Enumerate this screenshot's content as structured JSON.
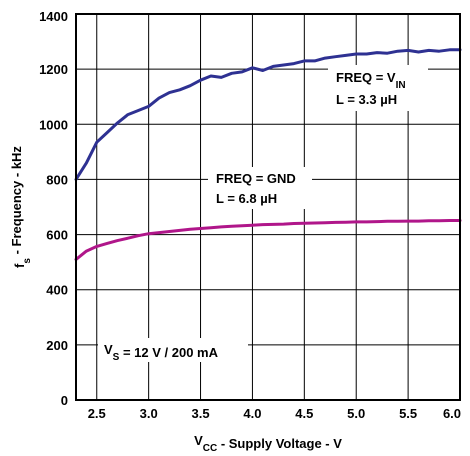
{
  "chart_data": {
    "type": "line",
    "title": "",
    "xlabel": {
      "main": "V",
      "sub": "CC",
      "rest": " - Supply Voltage - V"
    },
    "ylabel": {
      "main": "f",
      "sub": "s",
      "rest": " - Frequency - kHz"
    },
    "xlim": [
      2.3,
      6.0
    ],
    "ylim": [
      0,
      1400
    ],
    "xticks": [
      "2.5",
      "3.0",
      "3.5",
      "4.0",
      "4.5",
      "5.0",
      "5.5",
      "6.0"
    ],
    "yticks": [
      "0",
      "200",
      "400",
      "600",
      "800",
      "1000",
      "1200",
      "1400"
    ],
    "grid": true,
    "series": [
      {
        "color": "#2e3192",
        "x": [
          2.3,
          2.4,
          2.5,
          2.6,
          2.7,
          2.8,
          2.9,
          3.0,
          3.1,
          3.2,
          3.3,
          3.4,
          3.5,
          3.6,
          3.7,
          3.8,
          3.9,
          4.0,
          4.1,
          4.2,
          4.3,
          4.4,
          4.5,
          4.6,
          4.7,
          4.8,
          4.9,
          5.0,
          5.1,
          5.2,
          5.3,
          5.4,
          5.5,
          5.6,
          5.7,
          5.8,
          5.9,
          6.0
        ],
        "values": [
          800,
          860,
          935,
          970,
          1005,
          1035,
          1050,
          1065,
          1095,
          1115,
          1125,
          1140,
          1160,
          1175,
          1170,
          1185,
          1190,
          1205,
          1195,
          1210,
          1215,
          1220,
          1230,
          1230,
          1240,
          1245,
          1250,
          1255,
          1255,
          1260,
          1258,
          1265,
          1268,
          1262,
          1268,
          1265,
          1270,
          1270
        ]
      },
      {
        "color": "#b0168a",
        "x": [
          2.3,
          2.4,
          2.5,
          2.6,
          2.7,
          2.8,
          2.9,
          3.0,
          3.1,
          3.2,
          3.3,
          3.4,
          3.5,
          3.6,
          3.7,
          3.8,
          3.9,
          4.0,
          4.1,
          4.2,
          4.3,
          4.4,
          4.5,
          4.6,
          4.7,
          4.8,
          4.9,
          5.0,
          5.1,
          5.2,
          5.3,
          5.4,
          5.5,
          5.6,
          5.7,
          5.8,
          5.9,
          6.0
        ],
        "values": [
          510,
          540,
          557,
          568,
          578,
          587,
          596,
          603,
          607,
          611,
          615,
          619,
          622,
          625,
          628,
          630,
          632,
          634,
          636,
          637,
          638,
          640,
          641,
          642,
          643,
          644,
          645,
          646,
          646,
          647,
          648,
          648,
          649,
          649,
          650,
          650,
          651,
          651
        ]
      }
    ],
    "annotations": [
      {
        "line1": {
          "main": "FREQ = V",
          "sub": "IN"
        },
        "line2": "L = 3.3 µH"
      },
      {
        "line1": {
          "main": "FREQ = GND",
          "sub": ""
        },
        "line2": "L = 6.8 µH"
      },
      {
        "line1": {
          "main": "V",
          "sub": "S",
          "rest": " = 12 V / 200 mA"
        }
      }
    ]
  }
}
